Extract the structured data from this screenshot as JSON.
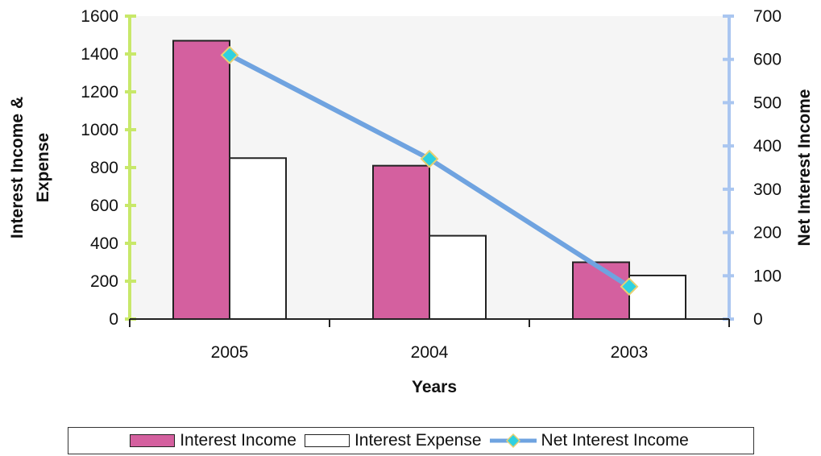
{
  "chart_data": {
    "type": "bar",
    "categories": [
      "2005",
      "2004",
      "2003"
    ],
    "series": [
      {
        "name": "Interest Income",
        "kind": "bar",
        "axis": "left",
        "color": "#d4609f",
        "values": [
          1470,
          810,
          300
        ]
      },
      {
        "name": "Interest Expense",
        "kind": "bar",
        "axis": "left",
        "color": "#ffffff",
        "values": [
          850,
          440,
          230
        ]
      },
      {
        "name": "Net Interest Income",
        "kind": "line",
        "axis": "right",
        "color": "#6fa3e0",
        "marker_color": "#2fd0e0",
        "values": [
          610,
          370,
          75
        ]
      }
    ],
    "xlabel": "Years",
    "ylabel": "Interest Income & Expense",
    "y2label": "Net Interest Income",
    "ylim": [
      0,
      1600
    ],
    "yticks": [
      "0",
      "200",
      "400",
      "600",
      "800",
      "1000",
      "1200",
      "1400",
      "1600"
    ],
    "y2lim": [
      0,
      700
    ],
    "y2ticks": [
      "0",
      "100",
      "200",
      "300",
      "400",
      "500",
      "600",
      "700"
    ],
    "legend_position": "bottom",
    "grid": false,
    "left_axis_color": "#c8e86a",
    "right_axis_color": "#aac6f0"
  }
}
